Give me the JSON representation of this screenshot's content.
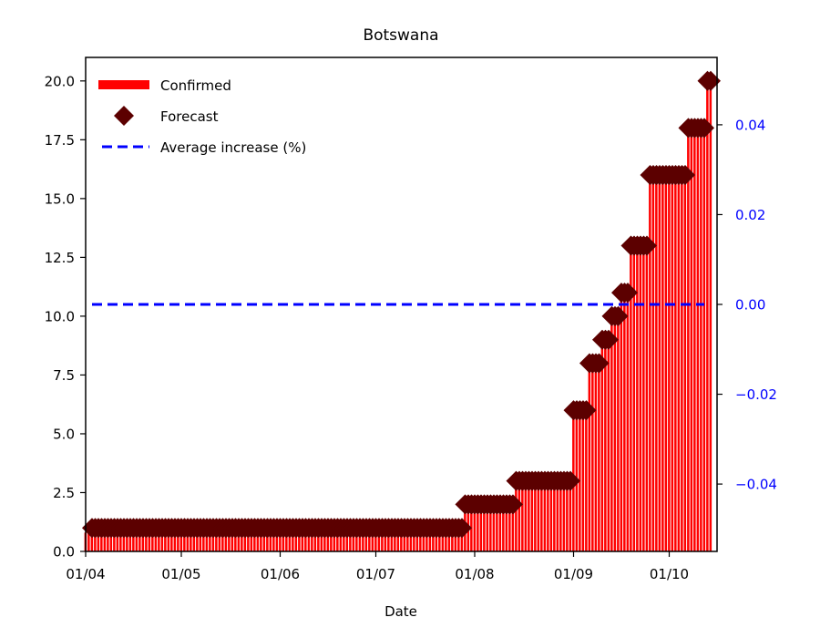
{
  "chart_data": {
    "type": "bar",
    "title": "Botswana",
    "xlabel": "Date",
    "ylabel": "",
    "ylim": [
      0,
      21
    ],
    "y2lim": [
      -0.055,
      0.055
    ],
    "grid": false,
    "legend_position": "upper-left",
    "x_tick_labels": [
      "01/04",
      "01/05",
      "01/06",
      "01/07",
      "01/08",
      "01/09",
      "01/10"
    ],
    "y_tick_labels": [
      "0.0",
      "2.5",
      "5.0",
      "7.5",
      "10.0",
      "12.5",
      "15.0",
      "17.5",
      "20.0"
    ],
    "y2_tick_labels": [
      "−0.04",
      "−0.02",
      "0.00",
      "0.02",
      "0.04"
    ],
    "series": [
      {
        "name": "Confirmed",
        "kind": "bar",
        "color": "#ff0000",
        "segments": [
          {
            "start": "2020-04-01",
            "end": "2020-04-02",
            "value": 0.8
          },
          {
            "start": "2020-04-03",
            "end": "2020-07-28",
            "value": 1
          },
          {
            "start": "2020-07-29",
            "end": "2020-08-13",
            "value": 2
          },
          {
            "start": "2020-08-14",
            "end": "2020-08-31",
            "value": 3
          },
          {
            "start": "2020-09-01",
            "end": "2020-09-05",
            "value": 6
          },
          {
            "start": "2020-09-06",
            "end": "2020-09-09",
            "value": 8
          },
          {
            "start": "2020-09-10",
            "end": "2020-09-12",
            "value": 9
          },
          {
            "start": "2020-09-13",
            "end": "2020-09-15",
            "value": 10
          },
          {
            "start": "2020-09-16",
            "end": "2020-09-18",
            "value": 11
          },
          {
            "start": "2020-09-19",
            "end": "2020-09-24",
            "value": 13
          },
          {
            "start": "2020-09-25",
            "end": "2020-10-06",
            "value": 16
          },
          {
            "start": "2020-10-07",
            "end": "2020-10-12",
            "value": 18
          },
          {
            "start": "2020-10-13",
            "end": "2020-10-14",
            "value": 20
          }
        ]
      },
      {
        "name": "Forecast",
        "kind": "scatter",
        "marker": "diamond",
        "color": "#5c0000",
        "segments": [
          {
            "start": "2020-04-03",
            "end": "2020-07-28",
            "value": 1
          },
          {
            "start": "2020-07-29",
            "end": "2020-08-13",
            "value": 2
          },
          {
            "start": "2020-08-14",
            "end": "2020-08-31",
            "value": 3
          },
          {
            "start": "2020-09-01",
            "end": "2020-09-05",
            "value": 6
          },
          {
            "start": "2020-09-06",
            "end": "2020-09-09",
            "value": 8
          },
          {
            "start": "2020-09-10",
            "end": "2020-09-12",
            "value": 9
          },
          {
            "start": "2020-09-13",
            "end": "2020-09-15",
            "value": 10
          },
          {
            "start": "2020-09-16",
            "end": "2020-09-18",
            "value": 11
          },
          {
            "start": "2020-09-19",
            "end": "2020-09-24",
            "value": 13
          },
          {
            "start": "2020-09-25",
            "end": "2020-10-06",
            "value": 16
          },
          {
            "start": "2020-10-07",
            "end": "2020-10-12",
            "value": 18
          },
          {
            "start": "2020-10-13",
            "end": "2020-10-14",
            "value": 20
          }
        ]
      },
      {
        "name": "Average increase (%)",
        "kind": "line",
        "axis": "right",
        "style": "dashed",
        "color": "#0000ff",
        "x_start": "2020-04-03",
        "x_end": "2020-10-12",
        "value": 0.0
      }
    ],
    "axis_colors": {
      "left": "#000000",
      "right": "#0000ff"
    }
  }
}
